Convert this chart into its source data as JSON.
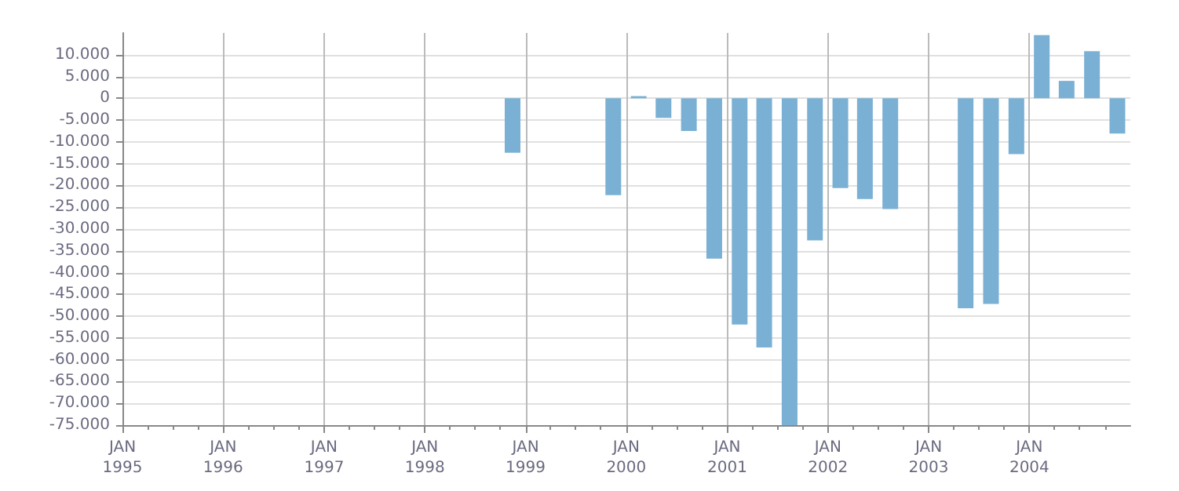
{
  "chart_data": {
    "type": "bar",
    "color": "#7ab0d4",
    "x": [
      "1998-11-15",
      "1999-11-15",
      "2000-02-15",
      "2000-05-15",
      "2000-08-15",
      "2000-11-15",
      "2001-02-15",
      "2001-05-15",
      "2001-08-15",
      "2001-11-15",
      "2002-02-15",
      "2002-05-15",
      "2002-08-15",
      "2003-05-15",
      "2003-08-15",
      "2003-11-15",
      "2004-02-15",
      "2004-05-15",
      "2004-08-15",
      "2004-11-15"
    ],
    "values": [
      -12500,
      -22200,
      500,
      -4500,
      -7500,
      -36800,
      -51900,
      -57200,
      -75000,
      -32600,
      -20600,
      -23100,
      -25400,
      -48200,
      -47200,
      -12800,
      14500,
      4000,
      10800,
      -8100
    ],
    "ylim": [
      -75000,
      15000
    ],
    "yticks": [
      {
        "value": -75000,
        "label": "-75.000"
      },
      {
        "value": -70000,
        "label": "-70.000"
      },
      {
        "value": -65000,
        "label": "-65.000"
      },
      {
        "value": -60000,
        "label": "-60.000"
      },
      {
        "value": -55000,
        "label": "-55.000"
      },
      {
        "value": -50000,
        "label": "-50.000"
      },
      {
        "value": -45000,
        "label": "-45.000"
      },
      {
        "value": -40000,
        "label": "-40.000"
      },
      {
        "value": -35000,
        "label": "-35.000"
      },
      {
        "value": -30000,
        "label": "-30.000"
      },
      {
        "value": -25000,
        "label": "-25.000"
      },
      {
        "value": -20000,
        "label": "-20.000"
      },
      {
        "value": -15000,
        "label": "-15.000"
      },
      {
        "value": -10000,
        "label": "-10.000"
      },
      {
        "value": -5000,
        "label": "-5.000"
      },
      0,
      {
        "value": 5000,
        "label": "5.000"
      },
      {
        "value": 10000,
        "label": "10.000"
      }
    ],
    "xlim": [
      "1995-01-01",
      "2005-01-01"
    ],
    "xticks": [
      {
        "value": "1995-01-01",
        "label": "JAN\n1995"
      },
      {
        "value": "1995-04-01",
        "label": null
      },
      {
        "value": "1995-07-01",
        "label": null
      },
      {
        "value": "1995-10-01",
        "label": null
      },
      {
        "value": "1996-01-01",
        "label": "JAN\n1996"
      },
      {
        "value": "1996-04-01",
        "label": null
      },
      {
        "value": "1996-07-01",
        "label": null
      },
      {
        "value": "1996-10-01",
        "label": null
      },
      {
        "value": "1997-01-01",
        "label": "JAN\n1997"
      },
      {
        "value": "1997-04-01",
        "label": null
      },
      {
        "value": "1997-07-01",
        "label": null
      },
      {
        "value": "1997-10-01",
        "label": null
      },
      {
        "value": "1998-01-01",
        "label": "JAN\n1998"
      },
      {
        "value": "1998-04-01",
        "label": null
      },
      {
        "value": "1998-07-01",
        "label": null
      },
      {
        "value": "1998-10-01",
        "label": null
      },
      {
        "value": "1999-01-01",
        "label": "JAN\n1999"
      },
      {
        "value": "1999-04-01",
        "label": null
      },
      {
        "value": "1999-07-01",
        "label": null
      },
      {
        "value": "1999-10-01",
        "label": null
      },
      {
        "value": "2000-01-01",
        "label": "JAN\n2000"
      },
      {
        "value": "2000-04-01",
        "label": null
      },
      {
        "value": "2000-07-01",
        "label": null
      },
      {
        "value": "2000-10-01",
        "label": null
      },
      {
        "value": "2001-01-01",
        "label": "JAN\n2001"
      },
      {
        "value": "2001-04-01",
        "label": null
      },
      {
        "value": "2001-07-01",
        "label": null
      },
      {
        "value": "2001-10-01",
        "label": null
      },
      {
        "value": "2002-01-01",
        "label": "JAN\n2002"
      },
      {
        "value": "2002-04-01",
        "label": null
      },
      {
        "value": "2002-07-01",
        "label": null
      },
      {
        "value": "2002-10-01",
        "label": null
      },
      {
        "value": "2003-01-01",
        "label": "JAN\n2003"
      },
      {
        "value": "2003-04-01",
        "label": null
      },
      {
        "value": "2003-07-01",
        "label": null
      },
      {
        "value": "2003-10-01",
        "label": null
      },
      {
        "value": "2004-01-01",
        "label": "JAN\n2004"
      },
      {
        "value": "2004-04-01",
        "label": null
      },
      {
        "value": "2004-07-01",
        "label": null
      },
      {
        "value": "2004-10-01",
        "label": null
      }
    ],
    "grid": true
  }
}
